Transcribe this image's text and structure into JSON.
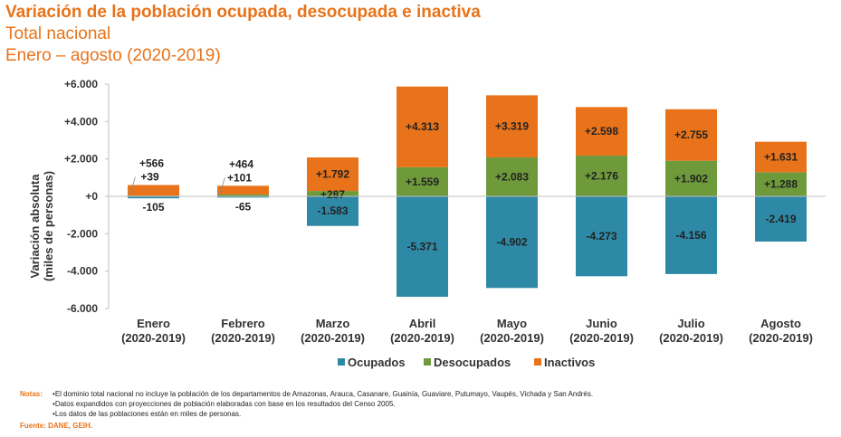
{
  "header": {
    "title": "Variación de la población ocupada, desocupada e inactiva",
    "subtitle_1": "Total nacional",
    "subtitle_2": "Enero – agosto (2020-2019)"
  },
  "colors": {
    "ocupados": "#2E89A6",
    "desocupados": "#6E9A3B",
    "inactivos": "#E8731A",
    "accent": "#E8731A"
  },
  "chart_data": {
    "type": "bar",
    "stacked": true,
    "categories": [
      [
        "Enero",
        "(2020-2019)"
      ],
      [
        "Febrero",
        "(2020-2019)"
      ],
      [
        "Marzo",
        "(2020-2019)"
      ],
      [
        "Abril",
        "(2020-2019)"
      ],
      [
        "Mayo",
        "(2020-2019)"
      ],
      [
        "Junio",
        "(2020-2019)"
      ],
      [
        "Julio",
        "(2020-2019)"
      ],
      [
        "Agosto",
        "(2020-2019)"
      ]
    ],
    "series": [
      {
        "name": "Ocupados",
        "key": "ocupados",
        "values": [
          -105,
          -65,
          -1583,
          -5371,
          -4902,
          -4273,
          -4156,
          -2419
        ],
        "labels": [
          "-105",
          "-65",
          "-1.583",
          "-5.371",
          "-4.902",
          "-4.273",
          "-4.156",
          "-2.419"
        ]
      },
      {
        "name": "Desocupados",
        "key": "desocupados",
        "values": [
          39,
          101,
          287,
          1559,
          2083,
          2176,
          1902,
          1288
        ],
        "labels": [
          "+39",
          "+101",
          "+287",
          "+1.559",
          "+2.083",
          "+2.176",
          "+1.902",
          "+1.288"
        ]
      },
      {
        "name": "Inactivos",
        "key": "inactivos",
        "values": [
          566,
          464,
          1792,
          4313,
          3319,
          2598,
          2755,
          1631
        ],
        "labels": [
          "+566",
          "+464",
          "+1.792",
          "+4.313",
          "+3.319",
          "+2.598",
          "+2.755",
          "+1.631"
        ]
      }
    ],
    "ylabel_lines": [
      "Variación absoluta",
      "(miles de personas)"
    ],
    "ylim": [
      -6000,
      6000
    ],
    "yticks": [
      -6000,
      -4000,
      -2000,
      0,
      2000,
      4000,
      6000
    ],
    "ytick_labels": [
      "-6.000",
      "-4.000",
      "-2.000",
      "+0",
      "+2.000",
      "+4.000",
      "+6.000"
    ],
    "grid": false,
    "legend_position": "bottom"
  },
  "notes": {
    "label": "Notas:",
    "items": [
      "El dominio total nacional no incluye la población de los departamentos de Amazonas, Arauca, Casanare, Guainía, Guaviare, Putumayo, Vaupés, Vichada y San Andrés.",
      "Datos expandidos con proyecciones de población elaboradas con base en los resultados del Censo 2005.",
      "Los datos de las poblaciones están en miles de personas."
    ]
  },
  "source": "Fuente: DANE, GEIH."
}
